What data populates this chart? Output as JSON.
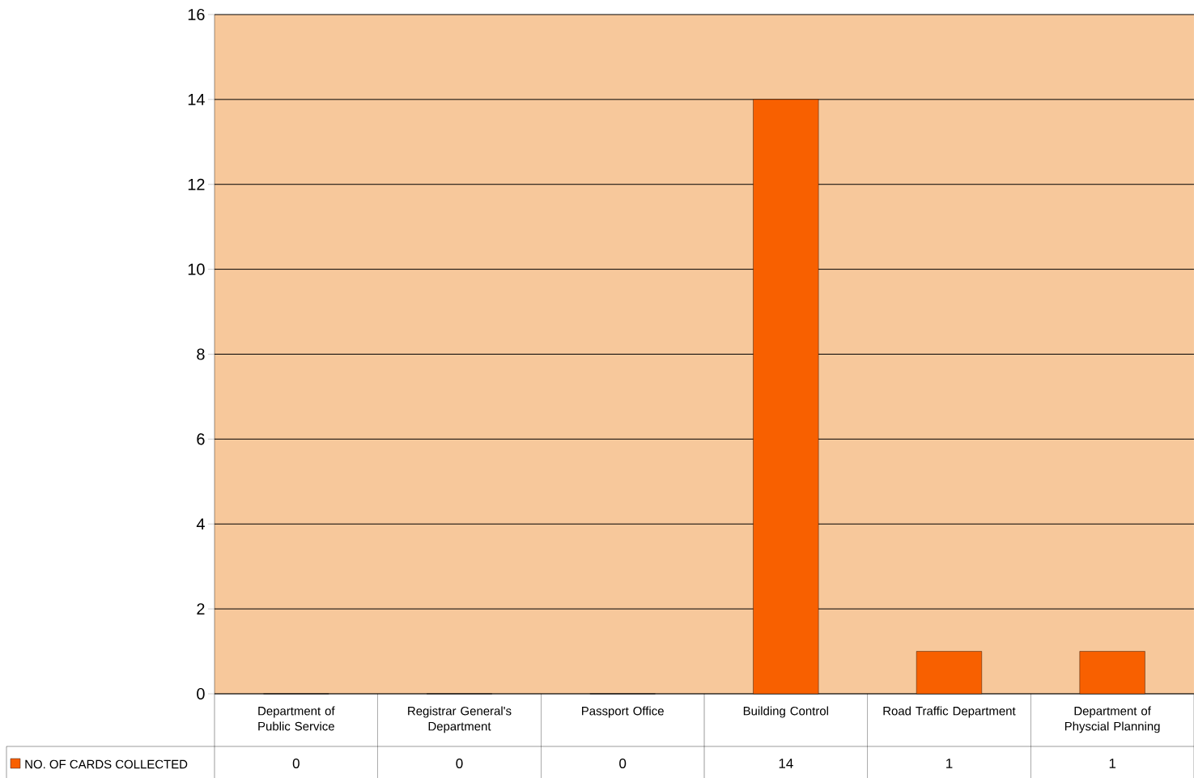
{
  "chart_data": {
    "type": "bar",
    "categories": [
      "Department of Public Service",
      "Registrar General's Department",
      "Passport Office",
      "Building Control",
      "Road Traffic Department",
      "Department of Physcial Planning"
    ],
    "series": [
      {
        "name": "NO. OF CARDS COLLECTED",
        "color": "#f86000",
        "values": [
          0,
          0,
          0,
          14,
          1,
          1
        ]
      }
    ],
    "ylim": [
      0,
      16
    ],
    "yticks": [
      0,
      2,
      4,
      6,
      8,
      10,
      12,
      14,
      16
    ],
    "grid": "y",
    "data_labels": true,
    "legend": "bottom left"
  }
}
